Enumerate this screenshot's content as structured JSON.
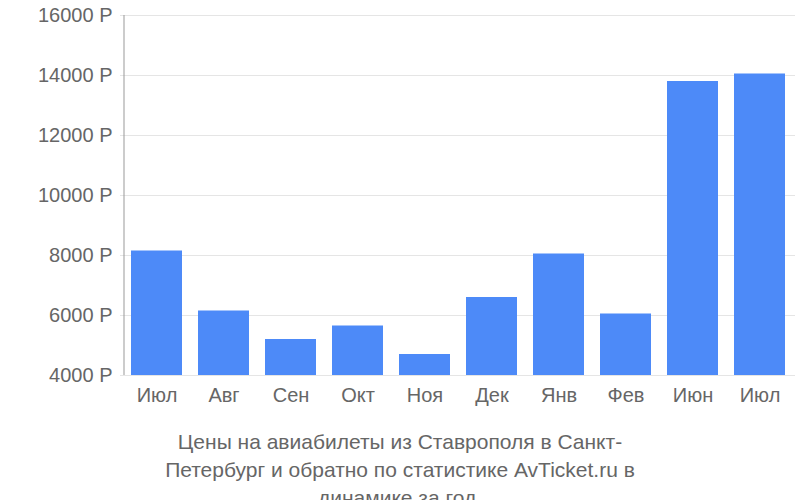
{
  "chart_data": {
    "type": "bar",
    "title": "Цены на авиабилеты из Ставрополя в Санкт-Петербург и обратно по статистике AvTicket.ru в динамике за год.",
    "categories": [
      "Июл",
      "Авг",
      "Сен",
      "Окт",
      "Ноя",
      "Дек",
      "Янв",
      "Фев",
      "Июн",
      "Июл"
    ],
    "values": [
      8150,
      6150,
      5200,
      5650,
      4700,
      6600,
      8050,
      6050,
      13800,
      14050
    ],
    "color": "#4d8af8",
    "ylim": [
      4000,
      16000
    ],
    "yticks": [
      {
        "value": 4000,
        "label": "4000 Р"
      },
      {
        "value": 6000,
        "label": "6000 Р"
      },
      {
        "value": 8000,
        "label": "8000 Р"
      },
      {
        "value": 10000,
        "label": "10000 Р"
      },
      {
        "value": 12000,
        "label": "12000 Р"
      },
      {
        "value": 14000,
        "label": "14000 Р"
      },
      {
        "value": 16000,
        "label": "16000 Р"
      }
    ],
    "grid": true
  }
}
